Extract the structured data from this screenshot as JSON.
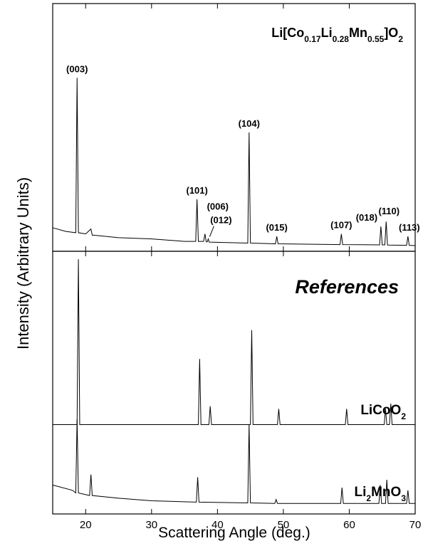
{
  "chart_data": [
    {
      "type": "line",
      "ylabel": "Intensity (Arbitrary Units)",
      "xlim": [
        15,
        70
      ],
      "ylim": [
        0,
        100
      ],
      "xticks": [
        20,
        30,
        40,
        50,
        60,
        70
      ],
      "series": [
        {
          "name": [
            {
              "text": "Li[Co"
            },
            {
              "text": "0.17",
              "sub": true
            },
            {
              "text": "Li"
            },
            {
              "text": "0.28",
              "sub": true
            },
            {
              "text": "Mn"
            },
            {
              "text": "0.55",
              "sub": true
            },
            {
              "text": "]O"
            },
            {
              "text": "2",
              "sub": true
            }
          ],
          "color": "#000000",
          "x": [
            15,
            17,
            18.5,
            18.7,
            18.9,
            20,
            20.8,
            21,
            21.2,
            25,
            30,
            35,
            36.7,
            36.9,
            37.1,
            37.9,
            38.1,
            38.3,
            38.45,
            38.6,
            38.75,
            44.6,
            44.8,
            45,
            48.8,
            49,
            49.2,
            58.6,
            58.8,
            59,
            64.6,
            64.8,
            65,
            65.4,
            65.6,
            65.8,
            68.7,
            68.9,
            69.1,
            70
          ],
          "values": [
            9.5,
            8,
            7.5,
            70,
            7.5,
            7,
            9,
            6.5,
            6.5,
            5.5,
            5,
            4,
            4,
            21,
            4,
            4,
            7,
            3.8,
            3.8,
            5,
            3.7,
            3.3,
            48,
            3.3,
            3,
            6,
            3,
            2.7,
            7,
            2.7,
            2.6,
            10,
            2.6,
            2.6,
            12,
            2.5,
            2.4,
            6,
            2.4,
            2.3
          ]
        }
      ],
      "annotations": [
        {
          "text": "(003)",
          "x": 18.7
        },
        {
          "text": "(101)",
          "x": 36.9
        },
        {
          "text": "(006)",
          "x": 38.1
        },
        {
          "text": "(012)",
          "x": 38.6
        },
        {
          "text": "(104)",
          "x": 44.8
        },
        {
          "text": "(015)",
          "x": 49
        },
        {
          "text": "(107)",
          "x": 58.8
        },
        {
          "text": "(018)",
          "x": 64.8
        },
        {
          "text": "(110)",
          "x": 65.6
        },
        {
          "text": "(113)",
          "x": 68.9
        }
      ]
    },
    {
      "type": "line",
      "title": "References",
      "xlabel": "Scattering Angle (deg.)",
      "xlim": [
        15,
        70
      ],
      "ylim": [
        0,
        100
      ],
      "xticks": [
        20,
        30,
        40,
        50,
        60,
        70
      ],
      "series": [
        {
          "name": [
            {
              "text": "LiCoO"
            },
            {
              "text": "2",
              "sub": true
            }
          ],
          "color": "#000000",
          "x": [
            15,
            18.7,
            18.9,
            19.1,
            25,
            30,
            37.1,
            37.3,
            37.5,
            38.7,
            38.9,
            39.1,
            45,
            45.2,
            45.4,
            49.1,
            49.3,
            49.5,
            59.4,
            59.6,
            59.8,
            65.3,
            65.5,
            65.7,
            66.1,
            66.3,
            66.5,
            70
          ],
          "values": [
            34,
            34,
            97,
            34,
            34,
            34,
            34,
            59,
            34,
            34,
            41,
            34,
            34,
            70,
            34,
            34,
            40,
            34,
            34,
            40,
            34,
            34,
            40,
            34,
            34,
            42,
            34,
            34
          ]
        },
        {
          "name": [
            {
              "text": "Li"
            },
            {
              "text": "2",
              "sub": true
            },
            {
              "text": "MnO"
            },
            {
              "text": "3",
              "sub": true
            }
          ],
          "color": "#000000",
          "x": [
            15,
            18,
            18.5,
            18.7,
            18.9,
            20.6,
            20.8,
            21,
            25,
            30,
            36.8,
            37,
            37.2,
            44.6,
            44.8,
            45,
            48.7,
            48.9,
            49.1,
            58.7,
            58.9,
            59.1,
            64.5,
            64.7,
            64.9,
            65.5,
            65.7,
            65.9,
            68.7,
            68.9,
            69.1,
            70
          ],
          "values": [
            11,
            9,
            8,
            36,
            8,
            7,
            15,
            7,
            6,
            5,
            4.5,
            14,
            4.5,
            4.2,
            34,
            4.2,
            4,
            5.5,
            4,
            4,
            10,
            4,
            4,
            11,
            4,
            4,
            13,
            4,
            4,
            9,
            4,
            4
          ]
        }
      ]
    }
  ]
}
